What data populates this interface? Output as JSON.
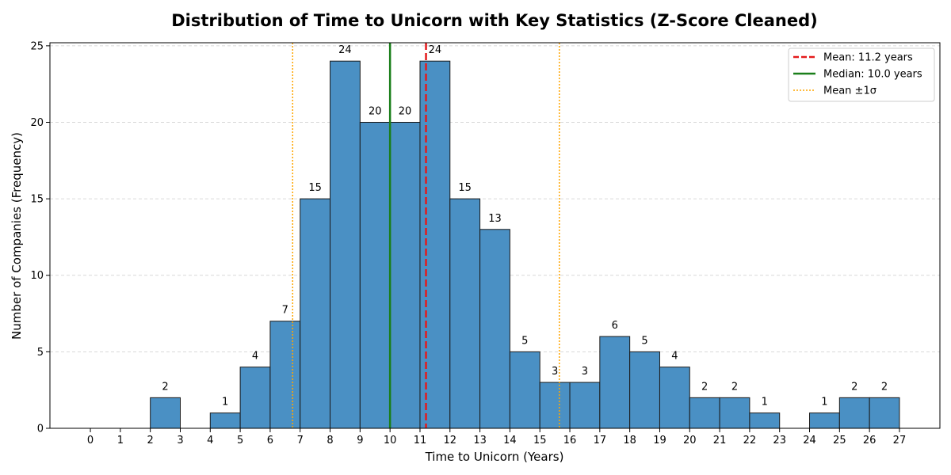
{
  "chart_data": {
    "type": "bar",
    "title": "Distribution of Time to Unicorn with Key Statistics (Z-Score Cleaned)",
    "xlabel": "Time to Unicorn (Years)",
    "ylabel": "Number of Companies (Frequency)",
    "xlim": [
      -1.35,
      28.35
    ],
    "ylim": [
      0,
      25.2
    ],
    "xticks": [
      0,
      1,
      2,
      3,
      4,
      5,
      6,
      7,
      8,
      9,
      10,
      11,
      12,
      13,
      14,
      15,
      16,
      17,
      18,
      19,
      20,
      21,
      22,
      23,
      24,
      25,
      26,
      27
    ],
    "yticks": [
      0,
      5,
      10,
      15,
      20,
      25
    ],
    "grid": "y-dashed",
    "bar_color": "#4a90c4",
    "bins": [
      {
        "start": 2,
        "end": 3,
        "count": 2
      },
      {
        "start": 4,
        "end": 5,
        "count": 1
      },
      {
        "start": 5,
        "end": 6,
        "count": 4
      },
      {
        "start": 6,
        "end": 7,
        "count": 7
      },
      {
        "start": 7,
        "end": 8,
        "count": 15
      },
      {
        "start": 8,
        "end": 9,
        "count": 24
      },
      {
        "start": 9,
        "end": 10,
        "count": 20
      },
      {
        "start": 10,
        "end": 11,
        "count": 20
      },
      {
        "start": 11,
        "end": 12,
        "count": 24
      },
      {
        "start": 12,
        "end": 13,
        "count": 15
      },
      {
        "start": 13,
        "end": 14,
        "count": 13
      },
      {
        "start": 14,
        "end": 15,
        "count": 5
      },
      {
        "start": 15,
        "end": 16,
        "count": 3
      },
      {
        "start": 16,
        "end": 17,
        "count": 3
      },
      {
        "start": 17,
        "end": 18,
        "count": 6
      },
      {
        "start": 18,
        "end": 19,
        "count": 5
      },
      {
        "start": 19,
        "end": 20,
        "count": 4
      },
      {
        "start": 20,
        "end": 21,
        "count": 2
      },
      {
        "start": 21,
        "end": 22,
        "count": 2
      },
      {
        "start": 22,
        "end": 23,
        "count": 1
      },
      {
        "start": 24,
        "end": 25,
        "count": 1
      },
      {
        "start": 25,
        "end": 26,
        "count": 2
      },
      {
        "start": 26,
        "end": 27,
        "count": 2
      }
    ],
    "reference_lines": [
      {
        "name": "mean-line",
        "x": 11.2,
        "color": "#e41a1c",
        "style": "dashed",
        "label": "Mean: 11.2 years"
      },
      {
        "name": "median-line",
        "x": 10.0,
        "color": "#1a7f1a",
        "style": "solid",
        "label": "Median: 10.0 years"
      },
      {
        "name": "sigma-lower-line",
        "x": 6.75,
        "color": "#ffa500",
        "style": "dotted",
        "label": "Mean ±1σ"
      },
      {
        "name": "sigma-upper-line",
        "x": 15.65,
        "color": "#ffa500",
        "style": "dotted",
        "label": null
      }
    ],
    "legend": {
      "position": "top-right",
      "entries": [
        {
          "label": "Mean: 11.2 years",
          "color": "#e41a1c",
          "style": "dashed"
        },
        {
          "label": "Median: 10.0 years",
          "color": "#1a7f1a",
          "style": "solid"
        },
        {
          "label": "Mean ±1σ",
          "color": "#ffa500",
          "style": "dotted"
        }
      ]
    }
  }
}
